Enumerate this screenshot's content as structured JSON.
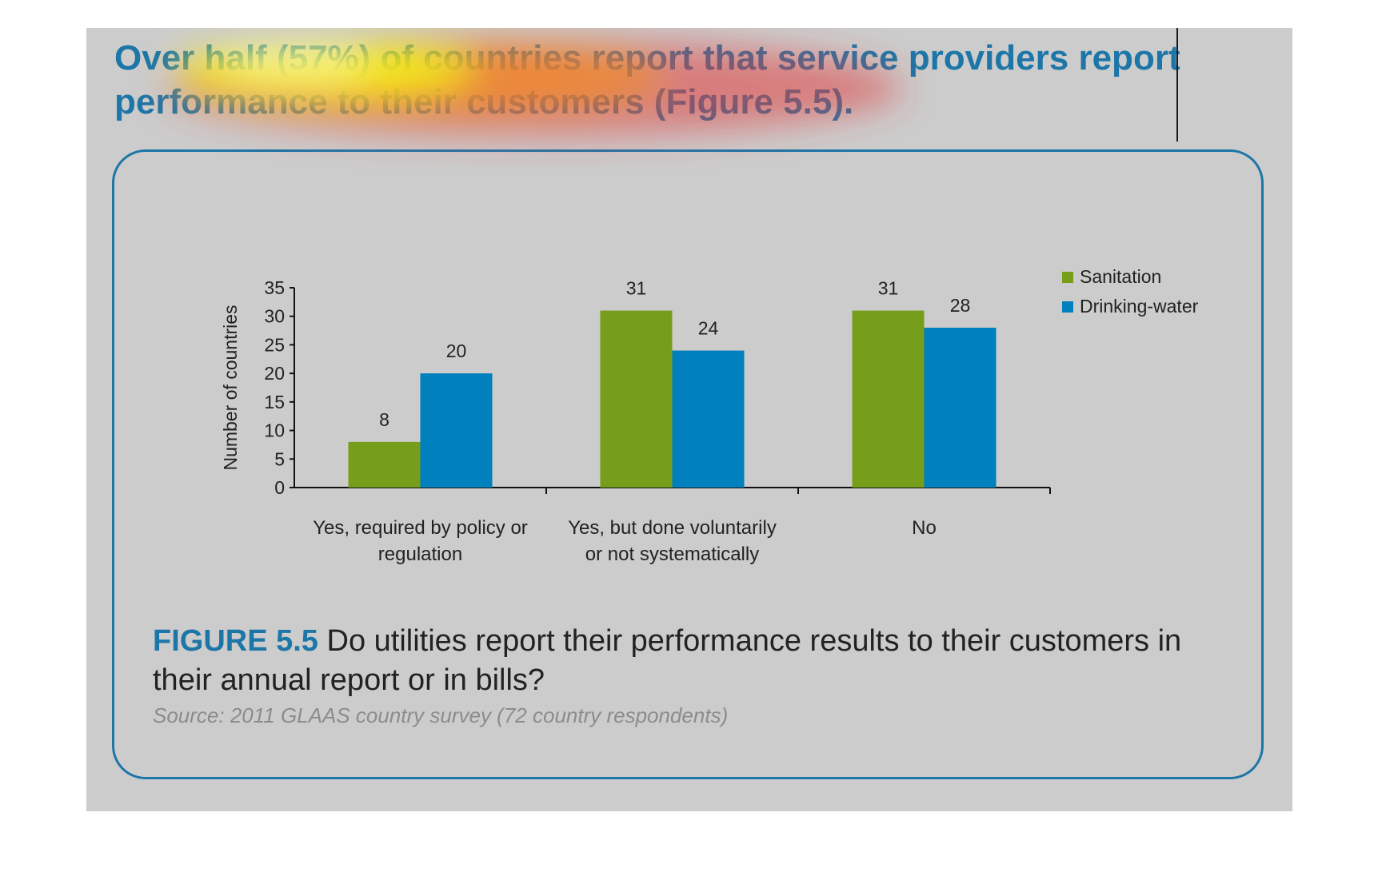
{
  "heading": {
    "text": "Over half (57%) of countries report that service providers report performance to their customers (Figure 5.5)."
  },
  "figure": {
    "label": "FIGURE 5.5",
    "caption": "Do utilities report their performance results to their customers in their annual report or in bills?",
    "source": "Source: 2011 GLAAS country survey (72 country respondents)"
  },
  "colors": {
    "sanitation": "#779e1a",
    "drinking_water": "#0080bd",
    "accent": "#1d76a8",
    "slide_background": "#cccccc"
  },
  "chart_data": {
    "type": "bar",
    "title": "",
    "xlabel": "",
    "ylabel": "Number of countries",
    "ylim": [
      0,
      35
    ],
    "yticks": [
      "0",
      "5",
      "10",
      "15",
      "20",
      "25",
      "30",
      "35"
    ],
    "categories": [
      [
        "Yes, required by policy or",
        "regulation"
      ],
      [
        "Yes, but done voluntarily",
        "or not systematically"
      ],
      [
        "No"
      ]
    ],
    "series": [
      {
        "name": "Sanitation",
        "color": "#779e1a",
        "values": [
          8,
          31,
          31
        ]
      },
      {
        "name": "Drinking-water",
        "color": "#0080bd",
        "values": [
          20,
          24,
          28
        ]
      }
    ],
    "data_labels": true,
    "grid": false,
    "legend_position": "top-right"
  }
}
